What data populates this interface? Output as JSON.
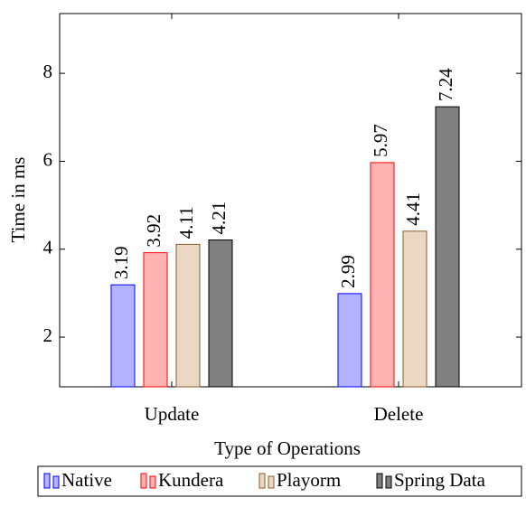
{
  "chart_data": {
    "type": "bar",
    "categories": [
      "Update",
      "Delete"
    ],
    "series": [
      {
        "name": "Native",
        "color": "#0000ff",
        "fill": "#b3b3ff",
        "values": [
          3.19,
          2.99
        ]
      },
      {
        "name": "Kundera",
        "color": "#ff0000",
        "fill": "#ffb3b3",
        "values": [
          3.92,
          5.97
        ]
      },
      {
        "name": "Playorm",
        "color": "#8b5a2b",
        "fill": "#ead8c4",
        "values": [
          4.11,
          4.41
        ]
      },
      {
        "name": "Spring Data",
        "color": "#000000",
        "fill": "#808080",
        "values": [
          4.21,
          7.24
        ]
      }
    ],
    "xlabel": "Type of Operations",
    "ylabel": "Time in ms",
    "ylim": [
      0.87,
      9.36
    ],
    "yticks": [
      2,
      4,
      6,
      8
    ],
    "legend": "bottom"
  }
}
